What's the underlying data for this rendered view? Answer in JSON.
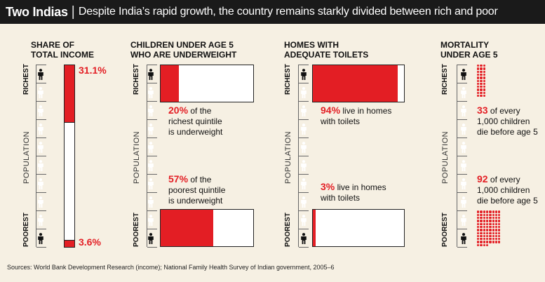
{
  "header": {
    "title": "Two Indias",
    "separator": "|",
    "subtitle": "Despite India’s rapid growth, the country remains starkly divided between rich and poor"
  },
  "labels": {
    "richest": "RICHEST",
    "poorest": "POOREST",
    "population": "POPULATION"
  },
  "colors": {
    "accent": "#e31e24",
    "header_bg": "#1a1a1a",
    "background": "#f6f0e3"
  },
  "panels": {
    "income": {
      "title_line1": "SHARE OF",
      "title_line2": "TOTAL INCOME",
      "richest_value": "31.1%",
      "poorest_value": "3.6%"
    },
    "underweight": {
      "title_line1": "CHILDREN UNDER AGE 5",
      "title_line2": "WHO ARE UNDERWEIGHT",
      "richest_pct": "20%",
      "richest_line1": " of the",
      "richest_line2": "richest quintile",
      "richest_line3": "is underweight",
      "poorest_pct": "57%",
      "poorest_line1": " of the",
      "poorest_line2": "poorest quintile",
      "poorest_line3": "is underweight"
    },
    "toilets": {
      "title_line1": "HOMES WITH",
      "title_line2": "ADEQUATE TOILETS",
      "richest_pct": "94%",
      "richest_line1": " live in homes",
      "richest_line2": "with toilets",
      "poorest_pct": "3%",
      "poorest_line1": " live in homes",
      "poorest_line2": "with toilets"
    },
    "mortality": {
      "title_line1": "MORTALITY",
      "title_line2": "UNDER AGE 5",
      "richest_num": "33",
      "richest_line1": " of every",
      "richest_line2": "1,000 children",
      "richest_line3": "die before age 5",
      "poorest_num": "92",
      "poorest_line1": " of every",
      "poorest_line2": "1,000 children",
      "poorest_line3": "die before age 5"
    }
  },
  "source": "Sources: World Bank Development Research (income); National Family Health Survey of Indian government, 2005–6",
  "chart_data": [
    {
      "type": "bar",
      "title": "SHARE OF TOTAL INCOME",
      "categories": [
        "Richest",
        "Poorest"
      ],
      "values": [
        31.1,
        3.6
      ],
      "unit": "%"
    },
    {
      "type": "bar",
      "title": "CHILDREN UNDER AGE 5 WHO ARE UNDERWEIGHT",
      "categories": [
        "Richest",
        "Poorest"
      ],
      "values": [
        20,
        57
      ],
      "unit": "%"
    },
    {
      "type": "bar",
      "title": "HOMES WITH ADEQUATE TOILETS",
      "categories": [
        "Richest",
        "Poorest"
      ],
      "values": [
        94,
        3
      ],
      "unit": "%"
    },
    {
      "type": "scatter",
      "title": "MORTALITY UNDER AGE 5",
      "categories": [
        "Richest",
        "Poorest"
      ],
      "values": [
        33,
        92
      ],
      "unit": "per 1,000 children"
    }
  ]
}
